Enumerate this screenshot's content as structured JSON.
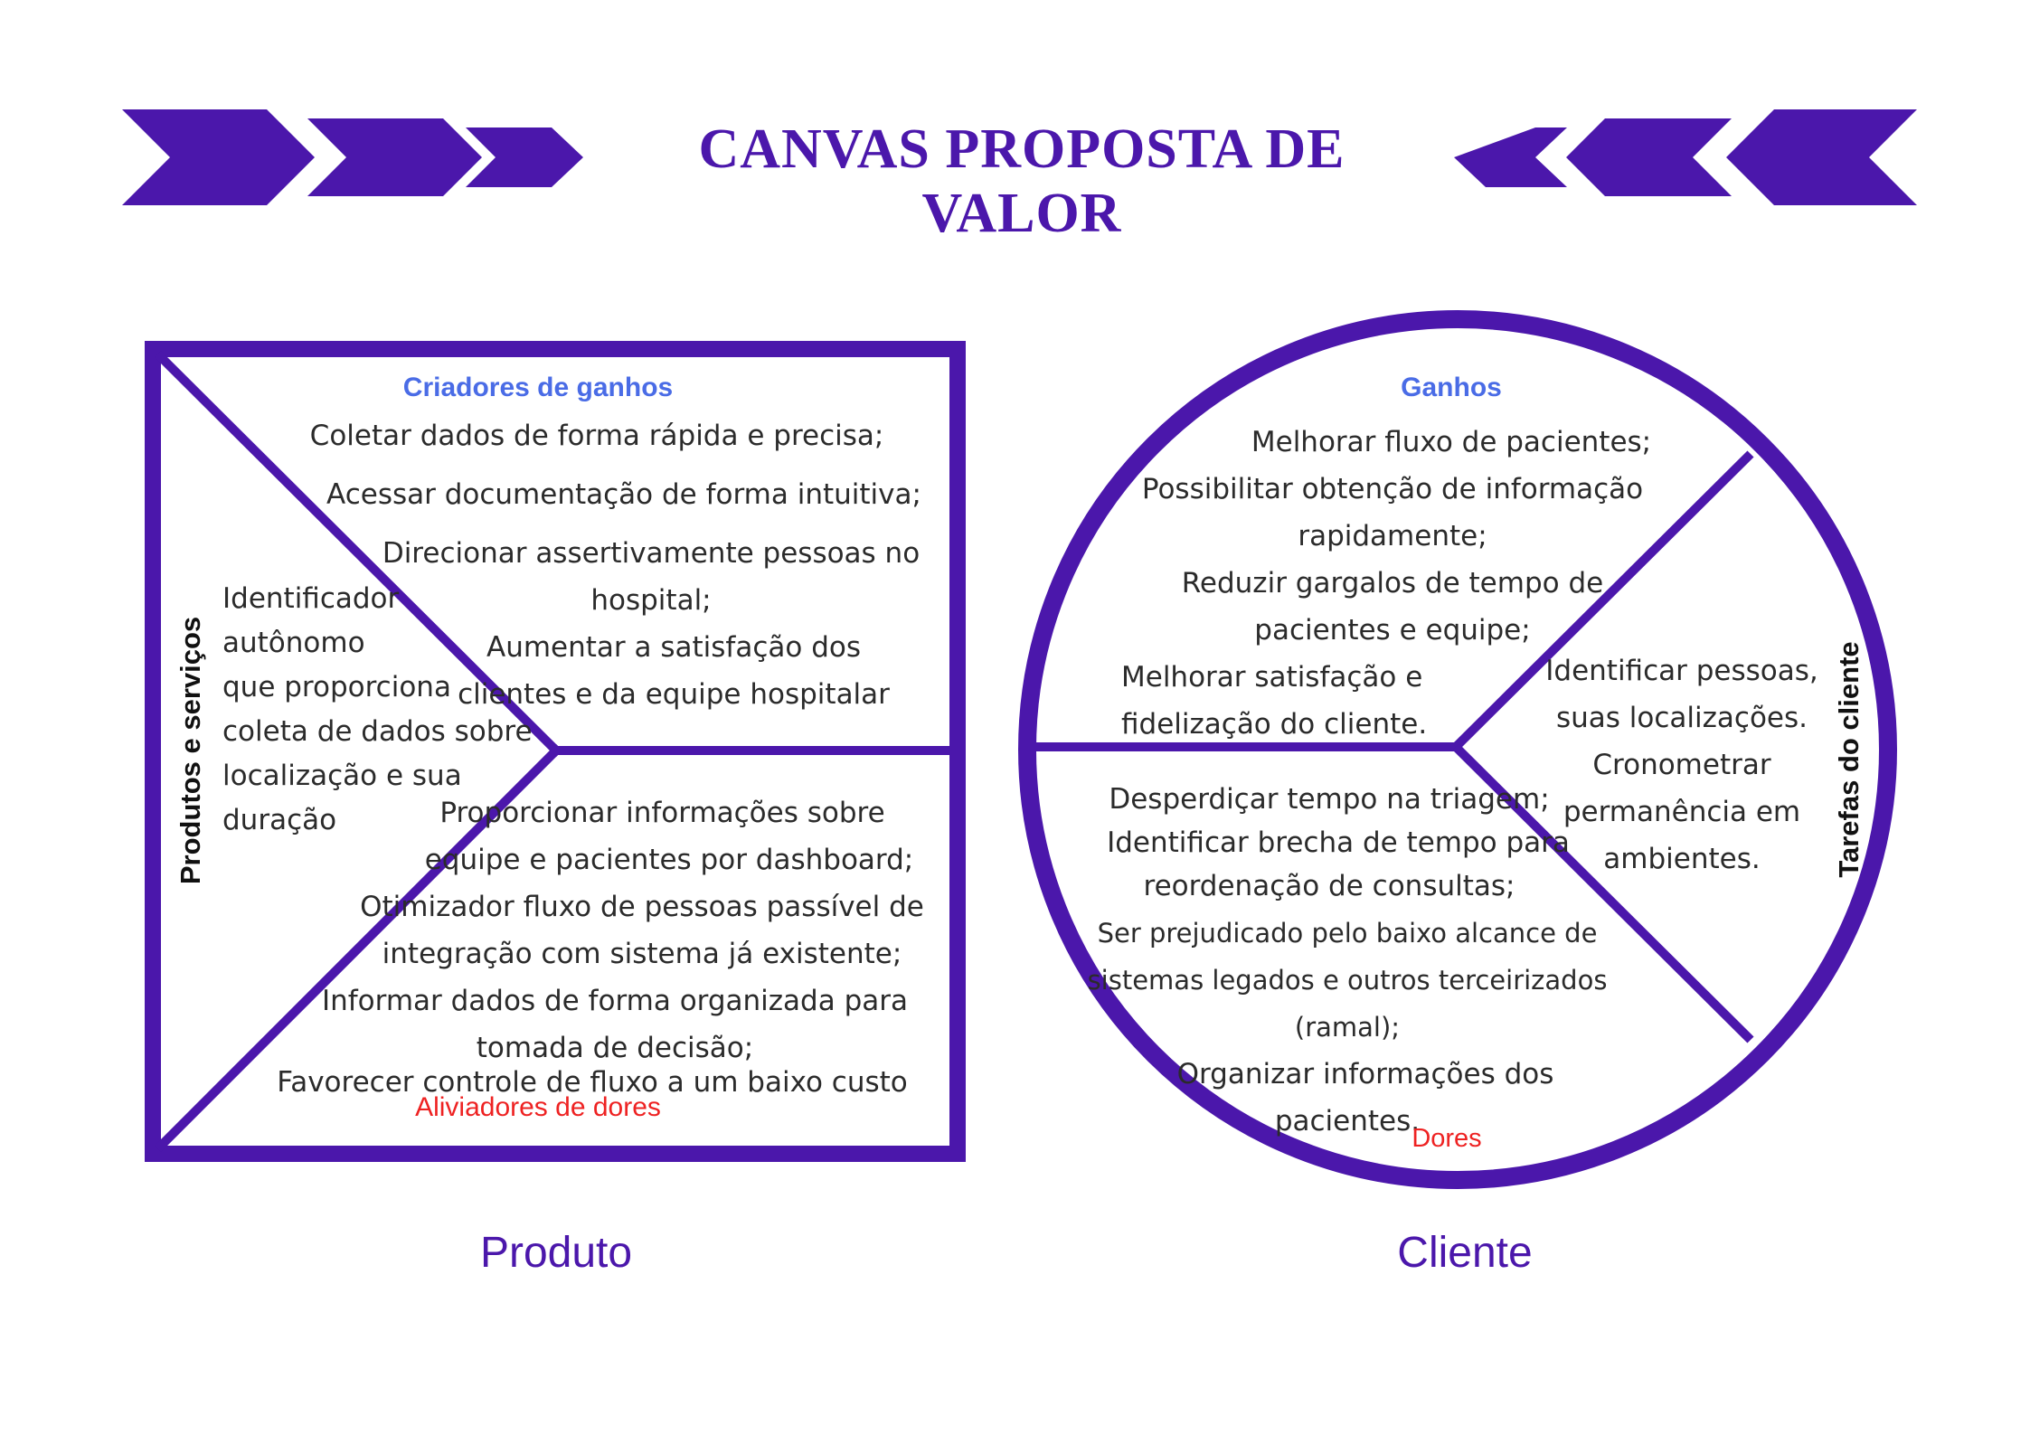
{
  "title": "CANVAS PROPOSTA DE VALOR",
  "colors": {
    "accent": "#4b17ab",
    "gains_heading": "#4a6ce6",
    "pains_heading": "#ee2222",
    "text": "#2b2b2b"
  },
  "product": {
    "gain_creators": {
      "heading": "Criadores de ganhos",
      "lines": [
        "Coletar dados de forma rápida e precisa;",
        "Acessar documentação de forma intuitiva;",
        "Direcionar assertivamente pessoas no",
        "hospital;",
        "Aumentar a satisfação dos",
        "clientes e da equipe hospitalar"
      ]
    },
    "products_services": {
      "label": "Produtos e serviços",
      "lines": [
        "Identificador",
        "autônomo",
        "que proporciona",
        "coleta de dados sobre",
        "localização e sua",
        "duração"
      ]
    },
    "pain_relievers": {
      "heading": "Aliviadores de dores",
      "lines": [
        "Proporcionar informações sobre",
        "equipe e pacientes por dashboard;",
        "Otimizador fluxo de pessoas passível de",
        "integração com sistema já existente;",
        "Informar dados de forma organizada para",
        "tomada de decisão;",
        "Favorecer controle de fluxo a um baixo custo"
      ]
    },
    "caption": "Produto"
  },
  "customer": {
    "gains": {
      "heading": "Ganhos",
      "lines": [
        "Melhorar fluxo de pacientes;",
        "Possibilitar obtenção de informação",
        "rapidamente;",
        "Reduzir gargalos de tempo de",
        "pacientes e equipe;",
        "Melhorar satisfação e",
        "fidelização do cliente."
      ]
    },
    "jobs": {
      "label": "Tarefas do cliente",
      "lines": [
        "Identificar pessoas,",
        "suas localizações.",
        "Cronometrar",
        "permanência em",
        "ambientes."
      ]
    },
    "pains": {
      "heading": "Dores",
      "lines": [
        "Desperdiçar tempo na triagem;",
        "Identificar brecha de tempo para",
        "reordenação de consultas;",
        "Ser prejudicado pelo baixo alcance de",
        "sistemas legados e outros terceirizados",
        "(ramal);",
        "Organizar informações dos",
        "pacientes."
      ]
    },
    "caption": "Cliente"
  }
}
